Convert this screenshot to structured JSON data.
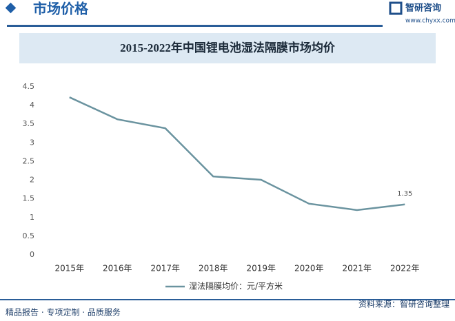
{
  "header": {
    "title": "市场价格",
    "logo_name": "智研咨询",
    "logo_url": "www.chyxx.com"
  },
  "footer": {
    "left": "精品报告 · 专项定制 · 品质服务",
    "right": "资料来源：智研咨询整理"
  },
  "chart_data": {
    "type": "line",
    "title": "2015-2022年中国锂电池湿法隔膜市场均价",
    "categories": [
      "2015年",
      "2016年",
      "2017年",
      "2018年",
      "2019年",
      "2020年",
      "2021年",
      "2022年"
    ],
    "series": [
      {
        "name": "湿法隔膜均价：元/平方米",
        "color": "#6a939f",
        "values": [
          4.22,
          3.63,
          3.39,
          2.1,
          2.01,
          1.37,
          1.2,
          1.35
        ],
        "value_labels": [
          null,
          null,
          null,
          null,
          null,
          null,
          null,
          "1.35"
        ]
      }
    ],
    "ylim": [
      0,
      4.5
    ],
    "yticks": [
      0,
      0.5,
      1,
      1.5,
      2,
      2.5,
      3,
      3.5,
      4,
      4.5
    ],
    "grid": false,
    "legend": "bottom"
  }
}
